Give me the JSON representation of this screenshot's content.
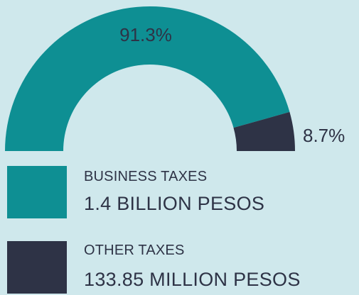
{
  "chart_data": {
    "type": "pie",
    "variant": "semi-donut",
    "categories": [
      "BUSINESS TAXES",
      "OTHER TAXES"
    ],
    "values": [
      91.3,
      8.7
    ],
    "value_labels": [
      "91.3%",
      "8.7%"
    ],
    "amounts": [
      "1.4 BILLION PESOS",
      "133.85 MILLION PESOS"
    ],
    "colors": [
      "#0e8f93",
      "#2e3346"
    ]
  },
  "legend": [
    {
      "name": "BUSINESS TAXES",
      "amount": "1.4 BILLION PESOS"
    },
    {
      "name": "OTHER TAXES",
      "amount": "133.85 MILLION PESOS"
    }
  ]
}
